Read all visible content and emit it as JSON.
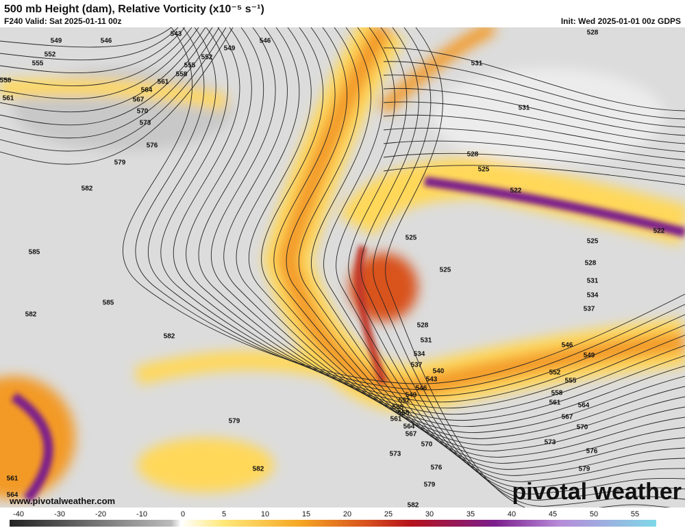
{
  "header": {
    "title": "500 mb Height (dam), Relative Vorticity (x10⁻⁵ s⁻¹)",
    "valid": "F240 Valid: Sat 2025-01-11 00z",
    "init": "Init: Wed 2025-01-01 00z GDPS"
  },
  "contour_labels": [
    543,
    546,
    549,
    546,
    552,
    549,
    552,
    555,
    555,
    558,
    558,
    561,
    564,
    561,
    567,
    570,
    573,
    576,
    579,
    582,
    585,
    585,
    582,
    582,
    579,
    582,
    582,
    579,
    576,
    573,
    570,
    567,
    564,
    561,
    558,
    555,
    552,
    549,
    546,
    543,
    540,
    537,
    534,
    531,
    528,
    525,
    525,
    525,
    522,
    522,
    528,
    528,
    531,
    531,
    525,
    528,
    531,
    534,
    537,
    546,
    549,
    552,
    555,
    558,
    561,
    564,
    567,
    570,
    573,
    576,
    579,
    561,
    564
  ],
  "colorbar_ticks": [
    -40,
    -30,
    -20,
    -10,
    0,
    5,
    10,
    15,
    20,
    25,
    30,
    35,
    40,
    45,
    50,
    55
  ],
  "footer": {
    "website": "www.pivotalweather.com",
    "brand": "pivotal weather"
  }
}
